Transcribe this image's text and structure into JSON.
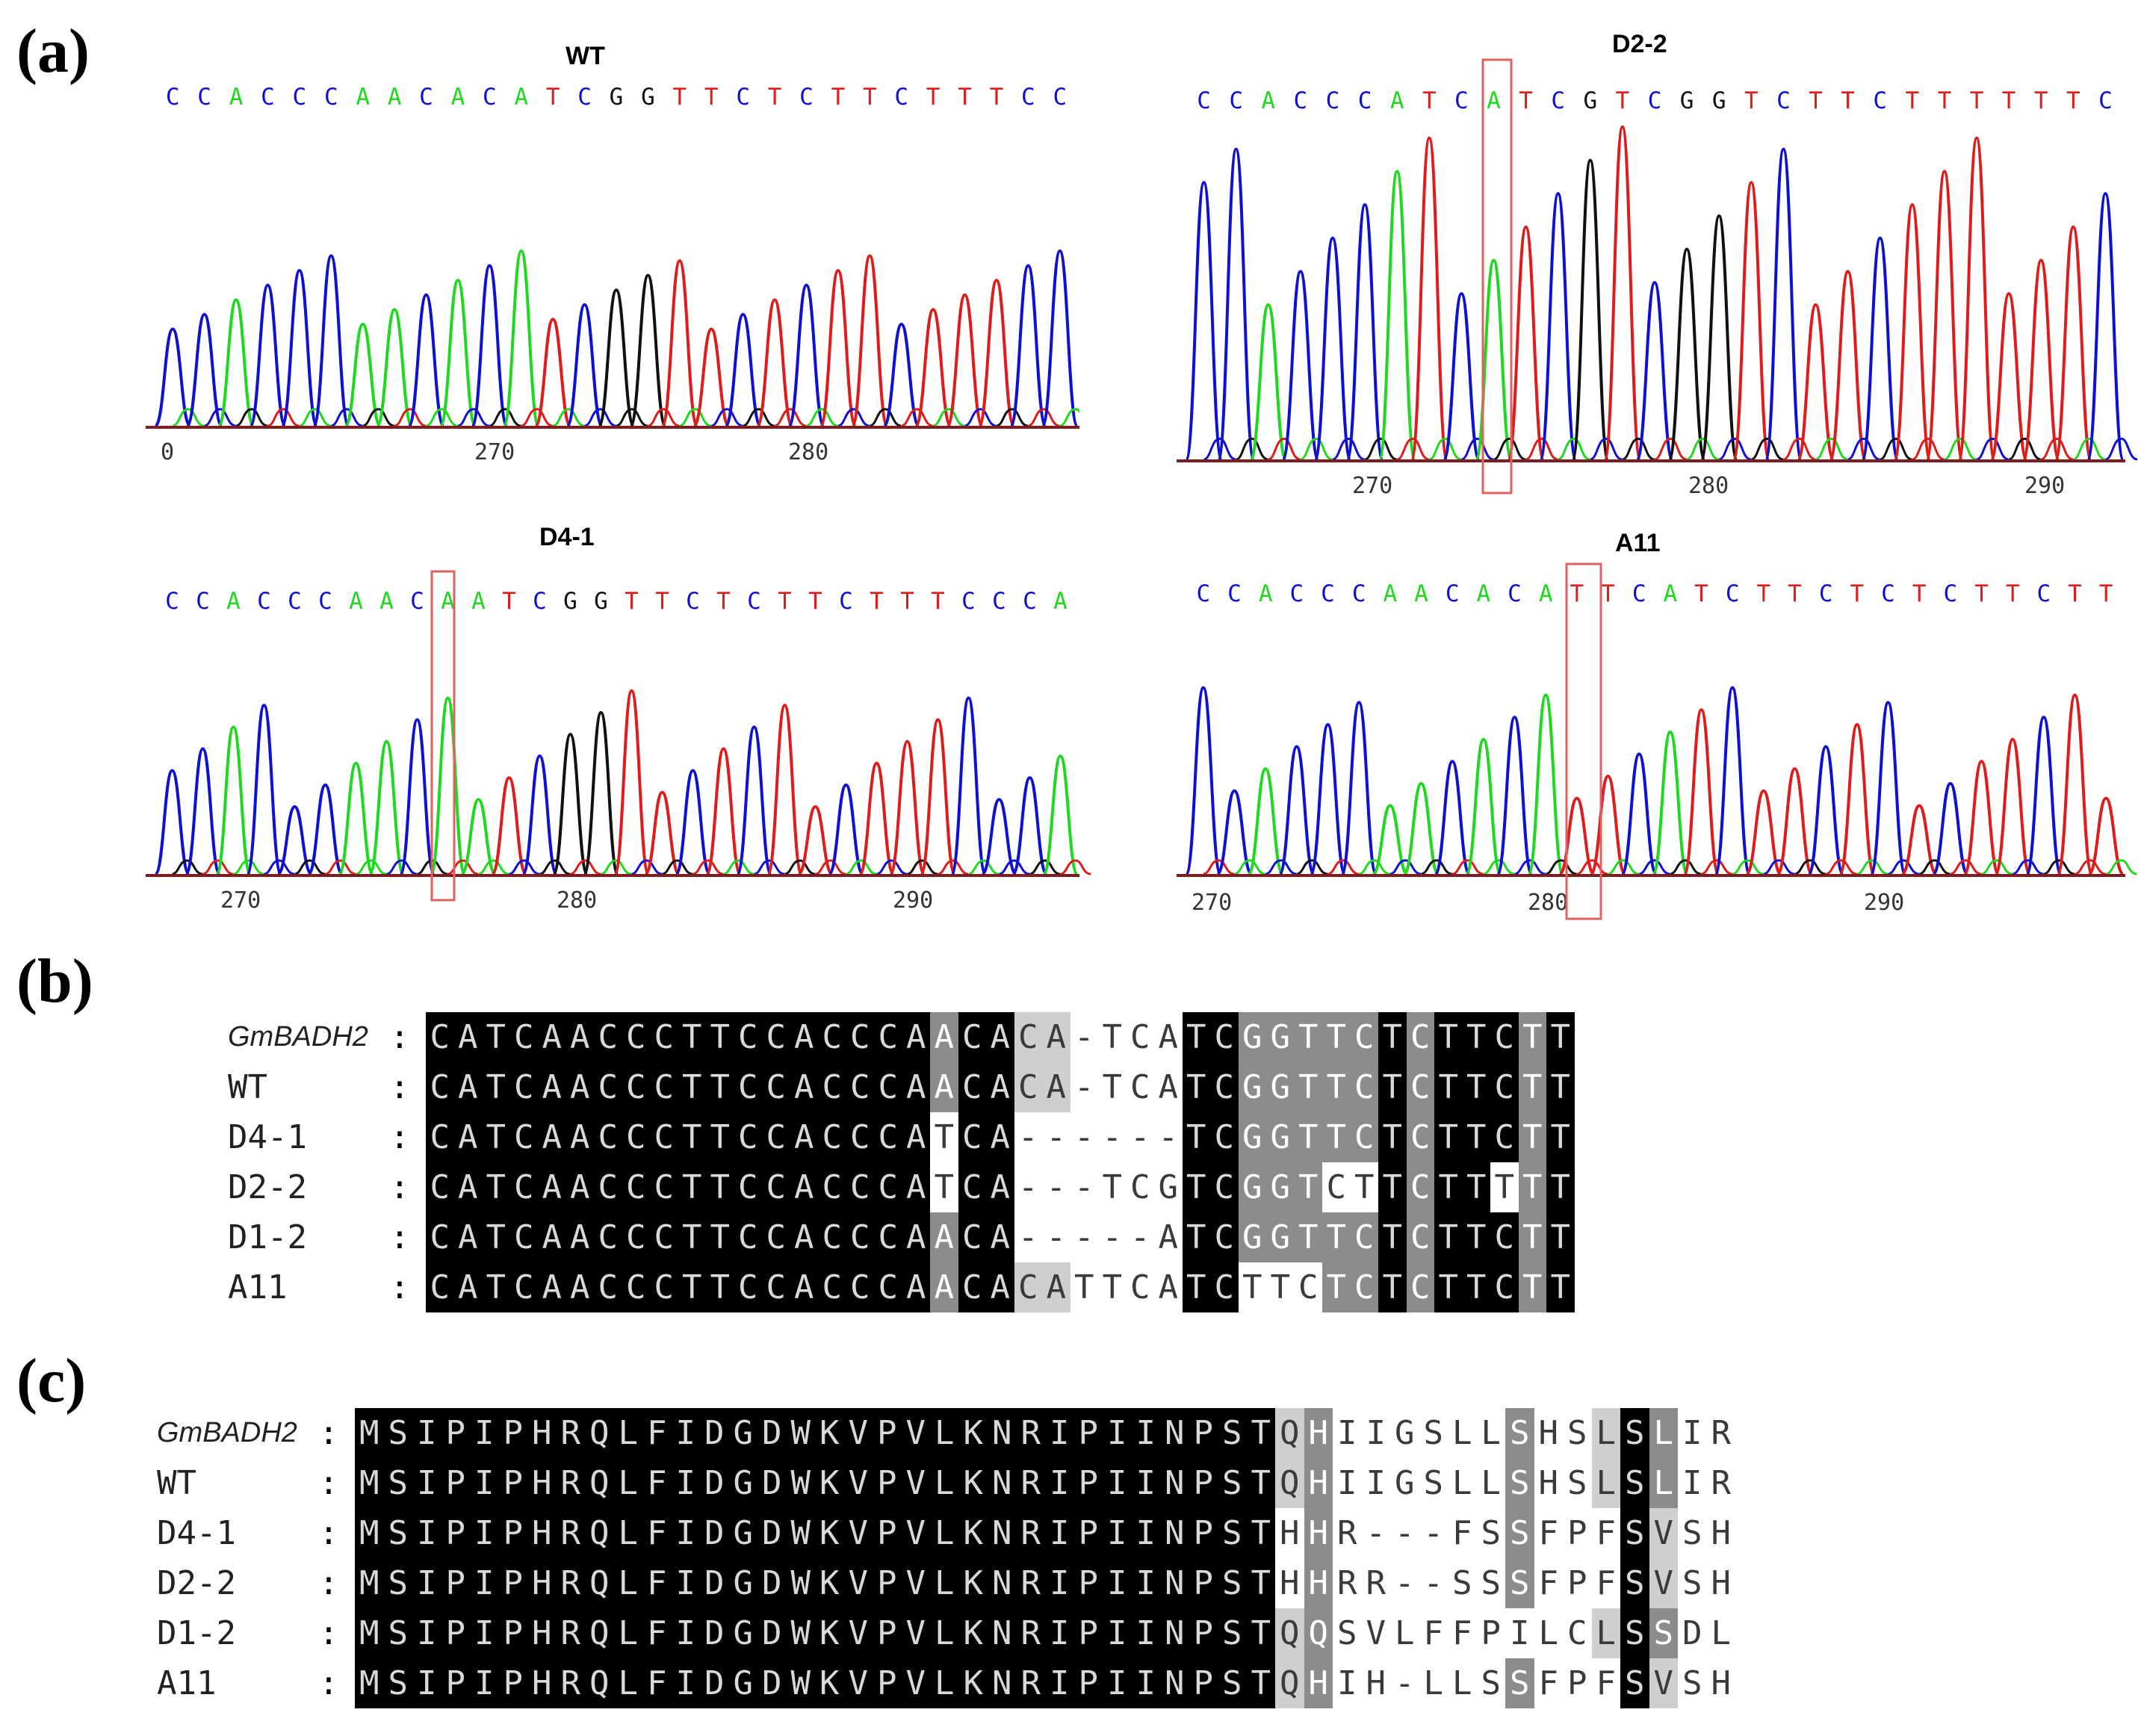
{
  "panels": {
    "a": "(a)",
    "b": "(b)",
    "c": "(c)"
  },
  "chromatograms": [
    {
      "title": "WT",
      "bases": "CCACCCAACACATCGGTTCTCTTCTTTCC",
      "ticks": [
        "0",
        "270",
        "280"
      ]
    },
    {
      "title": "D2-2",
      "bases": "CCACCCATCATCGTCGGTCTTCTTTTTTC",
      "ticks": [
        "270",
        "280",
        "290"
      ]
    },
    {
      "title": "D4-1",
      "bases": "CCACCCAACAATCGGTTCTCTTCTTTCCCA",
      "ticks": [
        "270",
        "280",
        "290"
      ]
    },
    {
      "title": "A11",
      "bases": "CCACCCAACACATTCATCTTCTCTCTTCTT",
      "ticks": [
        "270",
        "280",
        "290"
      ]
    }
  ],
  "colors": {
    "A": "#1fd81f",
    "C": "#1010d0",
    "G": "#111111",
    "T": "#dd1c1c",
    "box": "#e06060"
  },
  "dna_alignment": {
    "names": [
      "GmBADH2",
      "WT",
      "D4-1",
      "D2-2",
      "D1-2",
      "A11"
    ],
    "colon": ":",
    "seqs": [
      "CATCAACCCTTCCACCCAACACA-TCATCGGTTCTCTTCTT",
      "CATCAACCCTTCCACCCAACACA-TCATCGGTTCTCTTCTT",
      "CATCAACCCTTCCACCCATCA------TCGGTTCTCTTCTT",
      "CATCAACCCTTCCACCCATCA---TCGTCGGTCTTCTTTTT",
      "CATCAACCCTTCCACCCAACA-----ATCGGTTCTCTTCTT",
      "CATCAACCCTTCCACCCAACACATTCATCTTCTCTCTTCTT"
    ],
    "shading": [
      "KKKKKKKKKKKKKKKKKKDKKLLWWWWKKDDDDDKDKKKDKK",
      "KKKKKKKKKKKKKKKKKKDKKLLWWWWKKDDDDDKDKKKDKK",
      "KKKKKKKKKKKKKKKKKKWKKWWWWWWKKDDDDDKDKKKDKK",
      "KKKKKKKKKKKKKKKKKKWKKWWWWWWKKDDDWWKDKKWDKK",
      "KKKKKKKKKKKKKKKKKKDKKWWWWWWKKDDDDDKDKKKDKK",
      "KKKKKKKKKKKKKKKKKKDKKLLWWWWKKWWWDDKDKKKDKK"
    ]
  },
  "protein_alignment": {
    "names": [
      "GmBADH2",
      "WT",
      "D4-1",
      "D2-2",
      "D1-2",
      "A11"
    ],
    "colon": ":",
    "seqs": [
      "MSIPIPHRQLFIDGDWKVPVLKNRIPIINPSTQHIIGSLLSHSLSLIR",
      "MSIPIPHRQLFIDGDWKVPVLKNRIPIINPSTQHIIGSLLSHSLSLIR",
      "MSIPIPHRQLFIDGDWKVPVLKNRIPIINPSTHHR---FSSFPFSVSH",
      "MSIPIPHRQLFIDGDWKVPVLKNRIPIINPSTHHRR--SSSFPFSVSH",
      "MSIPIPHRQLFIDGDWKVPVLKNRIPIINPSTQQSVLFFPILCLSSDL",
      "MSIPIPHRQLFIDGDWKVPVLKNRIPIINPSTQHIH-LLSSFPFSVSH"
    ],
    "shading": [
      "KKKKKKKKKKKKKKKKKKKKKKKKKKKKKKKKLDWWWWWWDWWLKDWW",
      "KKKKKKKKKKKKKKKKKKKKKKKKKKKKKKKKLDWWWWWWDWWLKDWW",
      "KKKKKKKKKKKKKKKKKKKKKKKKKKKKKKKKWDWWWWWWDWWWKLWW",
      "KKKKKKKKKKKKKKKKKKKKKKKKKKKKKKKKWDWWWWWWDWWWKLWW",
      "KKKKKKKKKKKKKKKKKKKKKKKKKKKKKKKKLDWWWWWWWWWLKDWW",
      "KKKKKKKKKKKKKKKKKKKKKKKKKKKKKKKKLDWWWWWWDWWWKLWW"
    ]
  }
}
